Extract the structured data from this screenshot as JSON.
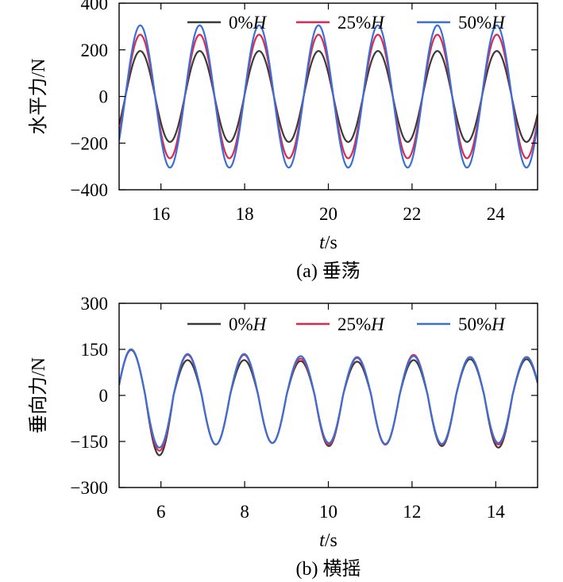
{
  "chart_data": [
    {
      "type": "line",
      "caption": "(a) 垂荡",
      "xlabel_var": "t",
      "xlabel_unit": "/s",
      "ylabel": "水平力/N",
      "xlim": [
        15,
        25
      ],
      "ylim": [
        -400,
        400
      ],
      "xticks": [
        16,
        18,
        20,
        22,
        24
      ],
      "yticks": [
        400,
        200,
        0,
        -200,
        -400
      ],
      "ytick_labels": [
        "400",
        "200",
        "0",
        "−200",
        "−400"
      ],
      "legend_position": "top",
      "period": 1.42,
      "phase_x0": 15.15,
      "series": [
        {
          "name_num": "0%",
          "name_var": "H",
          "color": "#3a3a3a",
          "amplitude": 195
        },
        {
          "name_num": "25%",
          "name_var": "H",
          "color": "#e0284e",
          "amplitude": 265
        },
        {
          "name_num": "50%",
          "name_var": "H",
          "color": "#3a6fd8",
          "amplitude": 305
        }
      ]
    },
    {
      "type": "line",
      "caption": "(b) 横摇",
      "xlabel_var": "t",
      "xlabel_unit": "/s",
      "ylabel": "垂向力/N",
      "xlim": [
        5,
        15
      ],
      "ylim": [
        -300,
        300
      ],
      "xticks": [
        6,
        8,
        10,
        12,
        14
      ],
      "yticks": [
        300,
        150,
        0,
        -150,
        -300
      ],
      "ytick_labels": [
        "300",
        "150",
        "0",
        "−150",
        "−300"
      ],
      "legend_position": "top",
      "period": 1.35,
      "phase_x0": 4.95,
      "offset": -15,
      "series": [
        {
          "name_num": "0%",
          "name_var": "H",
          "color": "#3a3a3a",
          "peaks": [
            148,
            115,
            115,
            112,
            110,
            115,
            118
          ],
          "troughs": [
            -195,
            -160,
            -155,
            -165,
            -160,
            -165,
            -170
          ]
        },
        {
          "name_num": "25%",
          "name_var": "H",
          "color": "#e0284e",
          "peaks": [
            150,
            132,
            132,
            120,
            122,
            132,
            125
          ],
          "troughs": [
            -180,
            -160,
            -155,
            -160,
            -160,
            -160,
            -160
          ]
        },
        {
          "name_num": "50%",
          "name_var": "H",
          "color": "#3a6fd8",
          "peaks": [
            150,
            135,
            135,
            128,
            125,
            128,
            125
          ],
          "troughs": [
            -170,
            -160,
            -155,
            -155,
            -158,
            -158,
            -155
          ]
        }
      ]
    }
  ]
}
